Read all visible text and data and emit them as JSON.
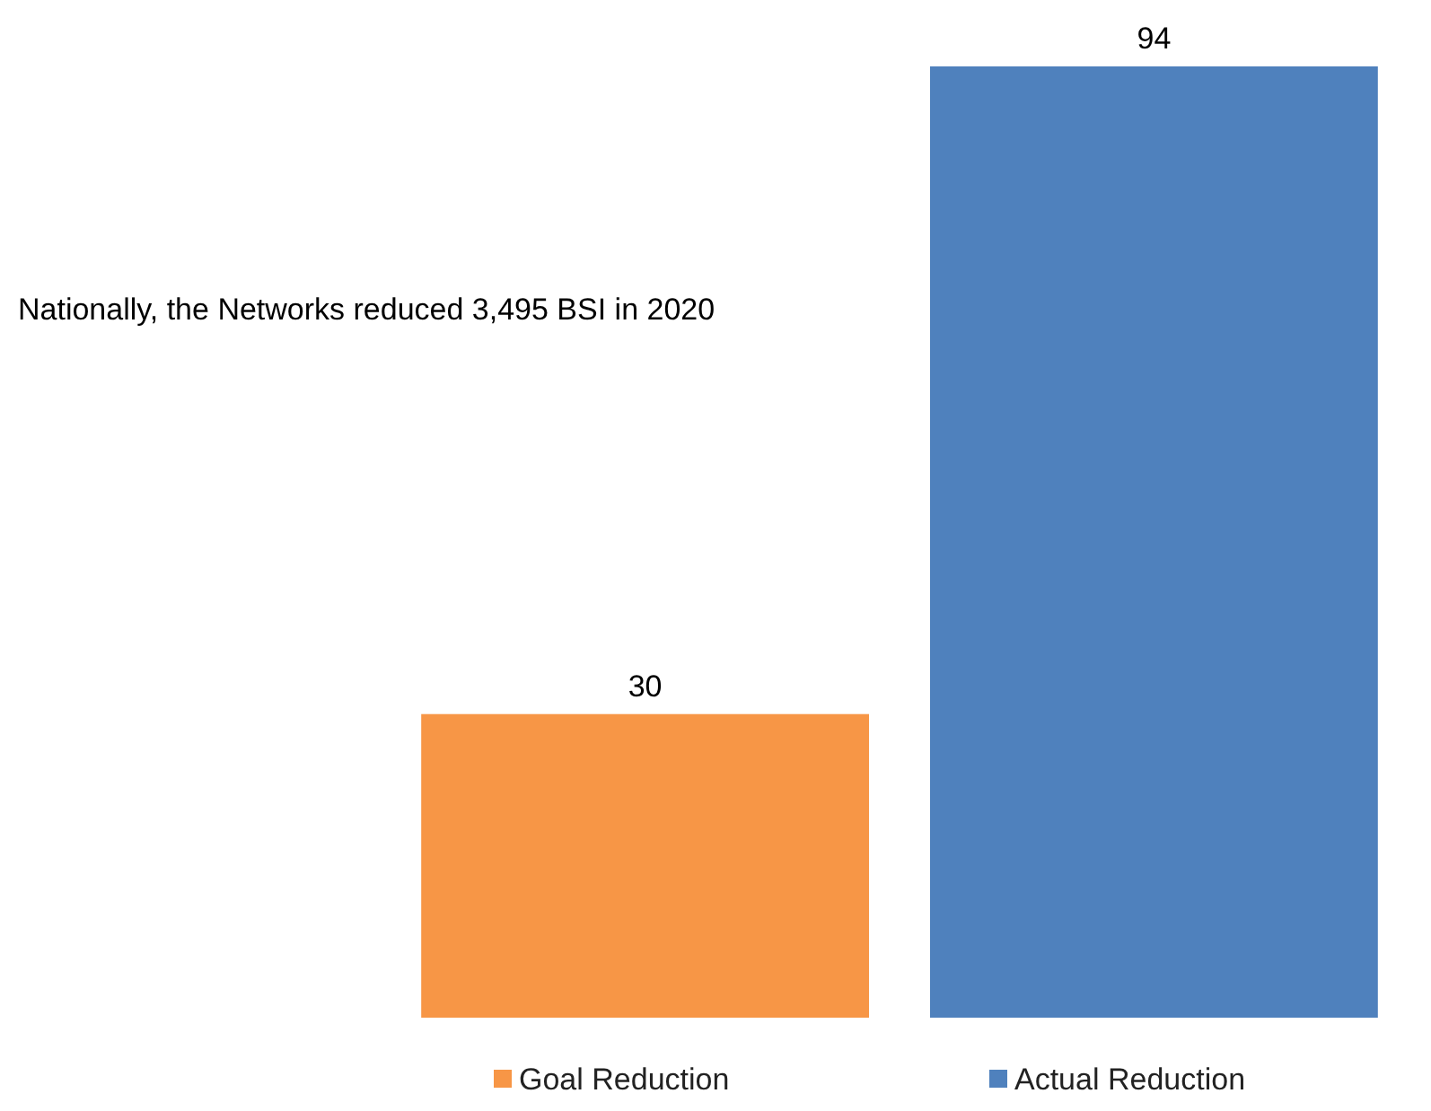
{
  "chart_data": {
    "type": "bar",
    "categories": [
      null
    ],
    "series": [
      {
        "name": "Goal Reduction",
        "color": "#f79646",
        "values": [
          30
        ]
      },
      {
        "name": "Actual Reduction",
        "color": "#4f81bd",
        "values": [
          94
        ]
      }
    ],
    "data_labels": true,
    "legend": "bottom",
    "annotations": [
      "Nationally, the Networks reduced 3,495 BSI in 2020"
    ]
  }
}
